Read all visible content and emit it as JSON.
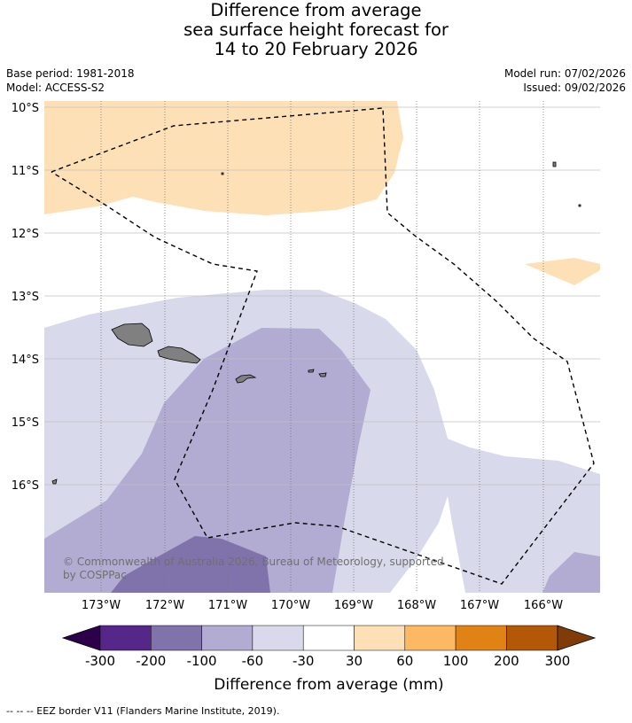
{
  "title": {
    "line1": "Difference from average",
    "line2": "sea surface height forecast for",
    "line3": "14 to 20 February 2026"
  },
  "meta": {
    "base_period": "Base period: 1981-2018",
    "model": "Model: ACCESS-S2",
    "model_run": "Model run: 07/02/2026",
    "issued": "Issued: 09/02/2026"
  },
  "map": {
    "latitude_labels": [
      "10°S",
      "11°S",
      "12°S",
      "13°S",
      "14°S",
      "15°S",
      "16°S"
    ],
    "longitude_labels": [
      "173°W",
      "172°W",
      "171°W",
      "170°W",
      "169°W",
      "168°W",
      "167°W",
      "166°W"
    ],
    "copyright_line1": "© Commonwealth of Australia 2026, Bureau of Meteorology, supported",
    "copyright_line2": "by COSPPac",
    "colors": {
      "land": "#808080",
      "eez_border": "#000000",
      "grid": "#c0c0c0"
    }
  },
  "colorbar": {
    "title": "Difference from average (mm)",
    "tick_labels": [
      "-300",
      "-200",
      "-100",
      "-60",
      "-30",
      "30",
      "60",
      "100",
      "200",
      "300"
    ],
    "below_min_color": "#2d004b",
    "above_max_color": "#7f3b08",
    "bins": [
      {
        "range": "-300 to -200",
        "color": "#542788"
      },
      {
        "range": "-200 to -100",
        "color": "#8073ac"
      },
      {
        "range": "-100 to -60",
        "color": "#b2abd2"
      },
      {
        "range": "-60 to -30",
        "color": "#d8daeb"
      },
      {
        "range": "-30 to 30",
        "color": "#ffffff"
      },
      {
        "range": "30 to 60",
        "color": "#fee0b6"
      },
      {
        "range": "60 to 100",
        "color": "#fdb863"
      },
      {
        "range": "100 to 200",
        "color": "#e08214"
      },
      {
        "range": "200 to 300",
        "color": "#b35806"
      }
    ]
  },
  "footnote": "--  --  -- EEZ border V11 (Flanders Marine Institute, 2019)."
}
